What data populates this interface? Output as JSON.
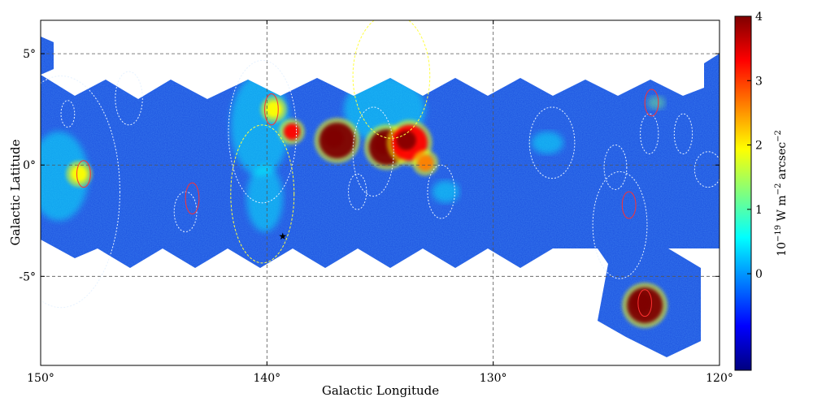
{
  "chart_data": {
    "type": "heatmap",
    "title": "",
    "xlabel": "Galactic Longitude",
    "ylabel": "Galactic Latitude",
    "xlim": [
      150,
      120
    ],
    "ylim": [
      -9,
      6.5
    ],
    "x_ticks": [
      {
        "value": 150,
        "label": "150°"
      },
      {
        "value": 140,
        "label": "140°"
      },
      {
        "value": 130,
        "label": "130°"
      },
      {
        "value": 120,
        "label": "120°"
      }
    ],
    "y_ticks": [
      {
        "value": 5,
        "label": "5°"
      },
      {
        "value": 0,
        "label": "0°"
      },
      {
        "value": -5,
        "label": "-5°"
      }
    ],
    "grid": true,
    "colormap": [
      "#00007f",
      "#0000ff",
      "#007fff",
      "#00ffff",
      "#7fff7f",
      "#ffff00",
      "#ff7f00",
      "#ff0000",
      "#7f0000"
    ],
    "background_color": "#1a4fe0",
    "colorbar": {
      "label": "10^{-19} W m^{-2} arcsec^{-2}",
      "label_base": "10",
      "label_exp1": "−19",
      "label_mid": " W m",
      "label_exp2": "−2",
      "label_mid2": " arcsec",
      "label_exp3": "−2",
      "min": -1.5,
      "max": 4,
      "ticks": [
        {
          "value": 0,
          "label": "0"
        },
        {
          "value": 1,
          "label": "1"
        },
        {
          "value": 2,
          "label": "2"
        },
        {
          "value": 3,
          "label": "3"
        },
        {
          "value": 4,
          "label": "4"
        }
      ]
    },
    "bright_regions": [
      {
        "l": 136.9,
        "b": 1.1,
        "value": 4
      },
      {
        "l": 134.7,
        "b": 0.8,
        "value": 4
      },
      {
        "l": 133.7,
        "b": 1.0,
        "value": 3.5
      },
      {
        "l": 123.3,
        "b": -6.3,
        "value": 4
      },
      {
        "l": 138.9,
        "b": 1.5,
        "value": 3.2
      },
      {
        "l": 148.3,
        "b": -0.4,
        "value": 2.2
      },
      {
        "l": 139.7,
        "b": 2.5,
        "value": 1.8
      },
      {
        "l": 133.0,
        "b": 0.1,
        "value": 2.5
      }
    ],
    "extended_emission": [
      {
        "l": 149.2,
        "b": -0.5,
        "rl": 1.3,
        "rb": 2.0,
        "value": 0.9
      },
      {
        "l": 140.3,
        "b": 1.8,
        "rl": 1.3,
        "rb": 2.3,
        "value": 0.8
      },
      {
        "l": 140.1,
        "b": -1.5,
        "rl": 0.8,
        "rb": 1.5,
        "value": 0.7
      },
      {
        "l": 134.8,
        "b": 2.5,
        "rl": 1.8,
        "rb": 1.5,
        "value": 0.6
      },
      {
        "l": 127.6,
        "b": 1.0,
        "rl": 0.7,
        "rb": 0.5,
        "value": 0.4
      },
      {
        "l": 122.8,
        "b": 2.8,
        "rl": 0.4,
        "rb": 0.3,
        "value": 1.0
      },
      {
        "l": 132.1,
        "b": -1.2,
        "rl": 0.6,
        "rb": 0.5,
        "value": 0.3
      }
    ],
    "circles_white": [
      {
        "l": 149.1,
        "b": -1.2,
        "rl": 2.6,
        "rb": 5.2
      },
      {
        "l": 146.1,
        "b": 3.0,
        "rl": 0.6,
        "rb": 1.2
      },
      {
        "l": 148.8,
        "b": 2.3,
        "rl": 0.3,
        "rb": 0.6
      },
      {
        "l": 143.6,
        "b": -2.1,
        "rl": 0.5,
        "rb": 0.9
      },
      {
        "l": 140.2,
        "b": 1.5,
        "rl": 1.5,
        "rb": 3.2
      },
      {
        "l": 135.3,
        "b": 0.6,
        "rl": 0.9,
        "rb": 2.0
      },
      {
        "l": 132.3,
        "b": -1.2,
        "rl": 0.6,
        "rb": 1.2
      },
      {
        "l": 136.0,
        "b": -1.2,
        "rl": 0.4,
        "rb": 0.8
      },
      {
        "l": 127.4,
        "b": 1.0,
        "rl": 1.0,
        "rb": 1.6
      },
      {
        "l": 124.6,
        "b": -0.1,
        "rl": 0.5,
        "rb": 1.0
      },
      {
        "l": 124.4,
        "b": -2.7,
        "rl": 1.2,
        "rb": 2.4
      },
      {
        "l": 123.1,
        "b": 1.4,
        "rl": 0.4,
        "rb": 0.9
      },
      {
        "l": 121.6,
        "b": 1.4,
        "rl": 0.4,
        "rb": 0.9
      },
      {
        "l": 120.5,
        "b": -0.2,
        "rl": 0.6,
        "rb": 0.8
      }
    ],
    "circles_yellow": [
      {
        "l": 140.2,
        "b": -1.3,
        "rl": 1.4,
        "rb": 3.1
      },
      {
        "l": 134.5,
        "b": 4.0,
        "rl": 1.7,
        "rb": 2.8
      }
    ],
    "circles_red": [
      {
        "l": 148.1,
        "b": -0.4,
        "rl": 0.3,
        "rb": 0.6
      },
      {
        "l": 143.3,
        "b": -1.5,
        "rl": 0.3,
        "rb": 0.7
      },
      {
        "l": 139.8,
        "b": 2.5,
        "rl": 0.3,
        "rb": 0.7
      },
      {
        "l": 124.0,
        "b": -1.8,
        "rl": 0.3,
        "rb": 0.6
      },
      {
        "l": 123.3,
        "b": -6.2,
        "rl": 0.3,
        "rb": 0.6
      },
      {
        "l": 123.0,
        "b": 2.8,
        "rl": 0.3,
        "rb": 0.6
      }
    ],
    "marker": {
      "l": 139.3,
      "b": -3.2,
      "symbol": "★"
    }
  }
}
